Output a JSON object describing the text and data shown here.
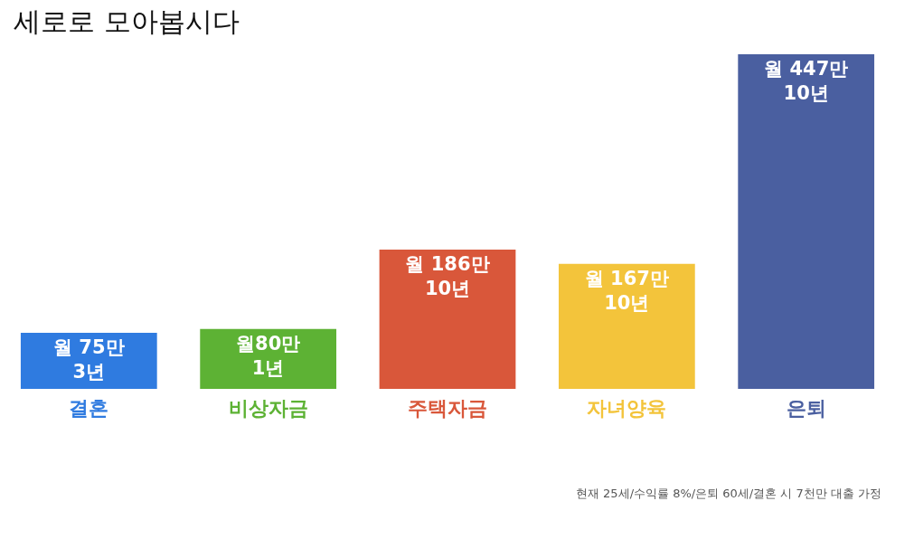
{
  "chart_data": {
    "type": "bar",
    "title": "세로로 모아봅시다",
    "categories": [
      "결혼",
      "비상자금",
      "주택자금",
      "자녀양육",
      "은퇴"
    ],
    "values": [
      75,
      80,
      186,
      167,
      447
    ],
    "colors": [
      "#2f7be0",
      "#5db234",
      "#d9573a",
      "#f3c43b",
      "#4a5fa0"
    ],
    "value_labels": [
      "월 75만\n3년",
      "월80만\n1년",
      "월 186만\n10년",
      "월 167만\n10년",
      "월 447만\n10년"
    ],
    "annotations": [
      "현재 25세/수익률 8%/은퇴 60세/결혼 시 7천만 대출 가정"
    ]
  }
}
